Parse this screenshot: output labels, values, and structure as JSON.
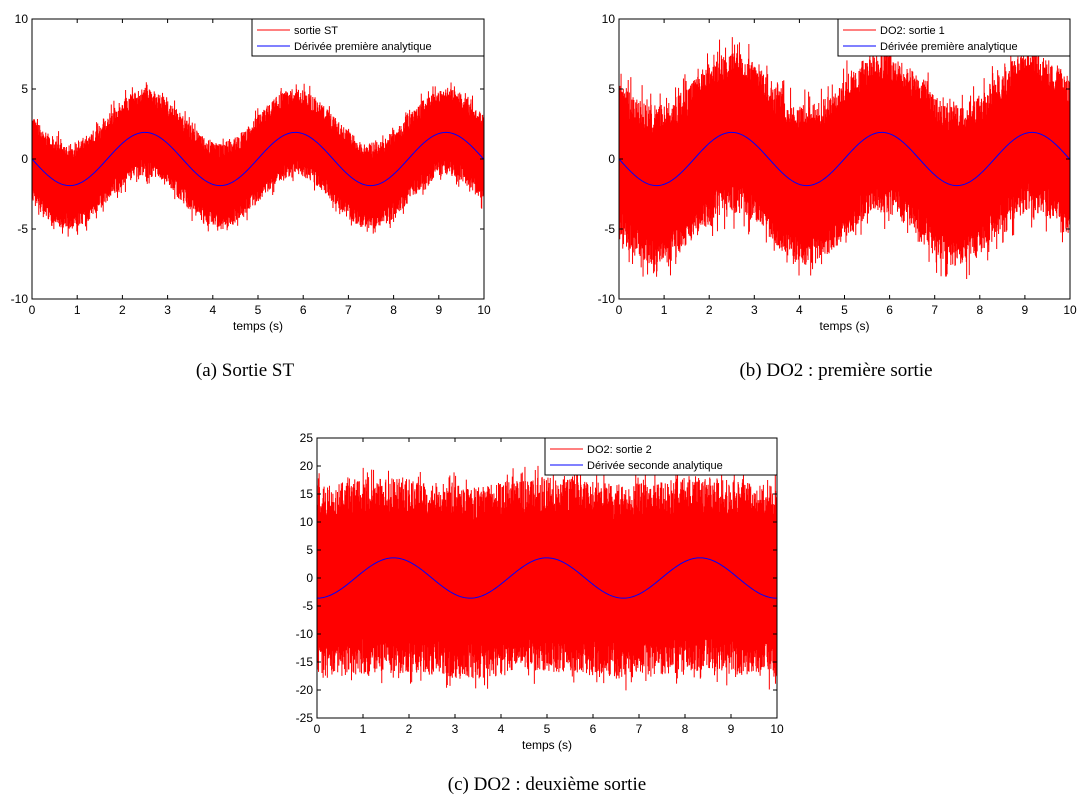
{
  "chart_data": [
    {
      "type": "line",
      "caption": "(a)  Sortie ST",
      "xlabel": "temps (s)",
      "ylabel": "",
      "xlim": [
        0,
        10
      ],
      "ylim": [
        -10,
        10
      ],
      "xticks": [
        0,
        1,
        2,
        3,
        4,
        5,
        6,
        7,
        8,
        9,
        10
      ],
      "yticks": [
        -10,
        -5,
        0,
        5,
        10
      ],
      "legend_position": "top-right",
      "series": [
        {
          "name": "sortie ST",
          "color": "#ff0000",
          "model": "noisy_signal",
          "center_amplitude": 1.9,
          "center_period": 3.33,
          "center_phase": "negative_sine",
          "noise_halfwidth": 2.6,
          "noise_max": 3.7
        },
        {
          "name": "Dérivée première analytique",
          "color": "#0000ff",
          "model": "sinusoid",
          "amplitude": 1.9,
          "period": 3.33,
          "phase": "negative_sine"
        }
      ]
    },
    {
      "type": "line",
      "caption": "(b)  DO2 : première sortie",
      "xlabel": "temps (s)",
      "ylabel": "",
      "xlim": [
        0,
        10
      ],
      "ylim": [
        -10,
        10
      ],
      "xticks": [
        0,
        1,
        2,
        3,
        4,
        5,
        6,
        7,
        8,
        9,
        10
      ],
      "yticks": [
        -10,
        -5,
        0,
        5,
        10
      ],
      "legend_position": "top-right",
      "series": [
        {
          "name": "DO2: sortie 1",
          "color": "#ff0000",
          "model": "noisy_signal",
          "center_amplitude": 1.9,
          "center_period": 3.33,
          "center_phase": "negative_sine",
          "noise_halfwidth": 4.8,
          "noise_max": 6.9
        },
        {
          "name": "Dérivée première analytique",
          "color": "#0000ff",
          "model": "sinusoid",
          "amplitude": 1.9,
          "period": 3.33,
          "phase": "negative_sine"
        }
      ]
    },
    {
      "type": "line",
      "caption": "(c)  DO2 : deuxième sortie",
      "xlabel": "temps (s)",
      "ylabel": "",
      "xlim": [
        0,
        10
      ],
      "ylim": [
        -25,
        25
      ],
      "xticks": [
        0,
        1,
        2,
        3,
        4,
        5,
        6,
        7,
        8,
        9,
        10
      ],
      "yticks": [
        -25,
        -20,
        -15,
        -10,
        -5,
        0,
        5,
        10,
        15,
        20,
        25
      ],
      "legend_position": "top-right",
      "series": [
        {
          "name": "DO2: sortie 2",
          "color": "#ff0000",
          "model": "noisy_signal",
          "center_amplitude": 0.6,
          "center_period": 3.33,
          "center_phase": "negative_cosine",
          "noise_halfwidth": 14.5,
          "noise_max": 19.5
        },
        {
          "name": "Dérivée seconde analytique",
          "color": "#0000ff",
          "model": "sinusoid",
          "amplitude": 3.6,
          "period": 3.33,
          "phase": "negative_cosine"
        }
      ]
    }
  ]
}
